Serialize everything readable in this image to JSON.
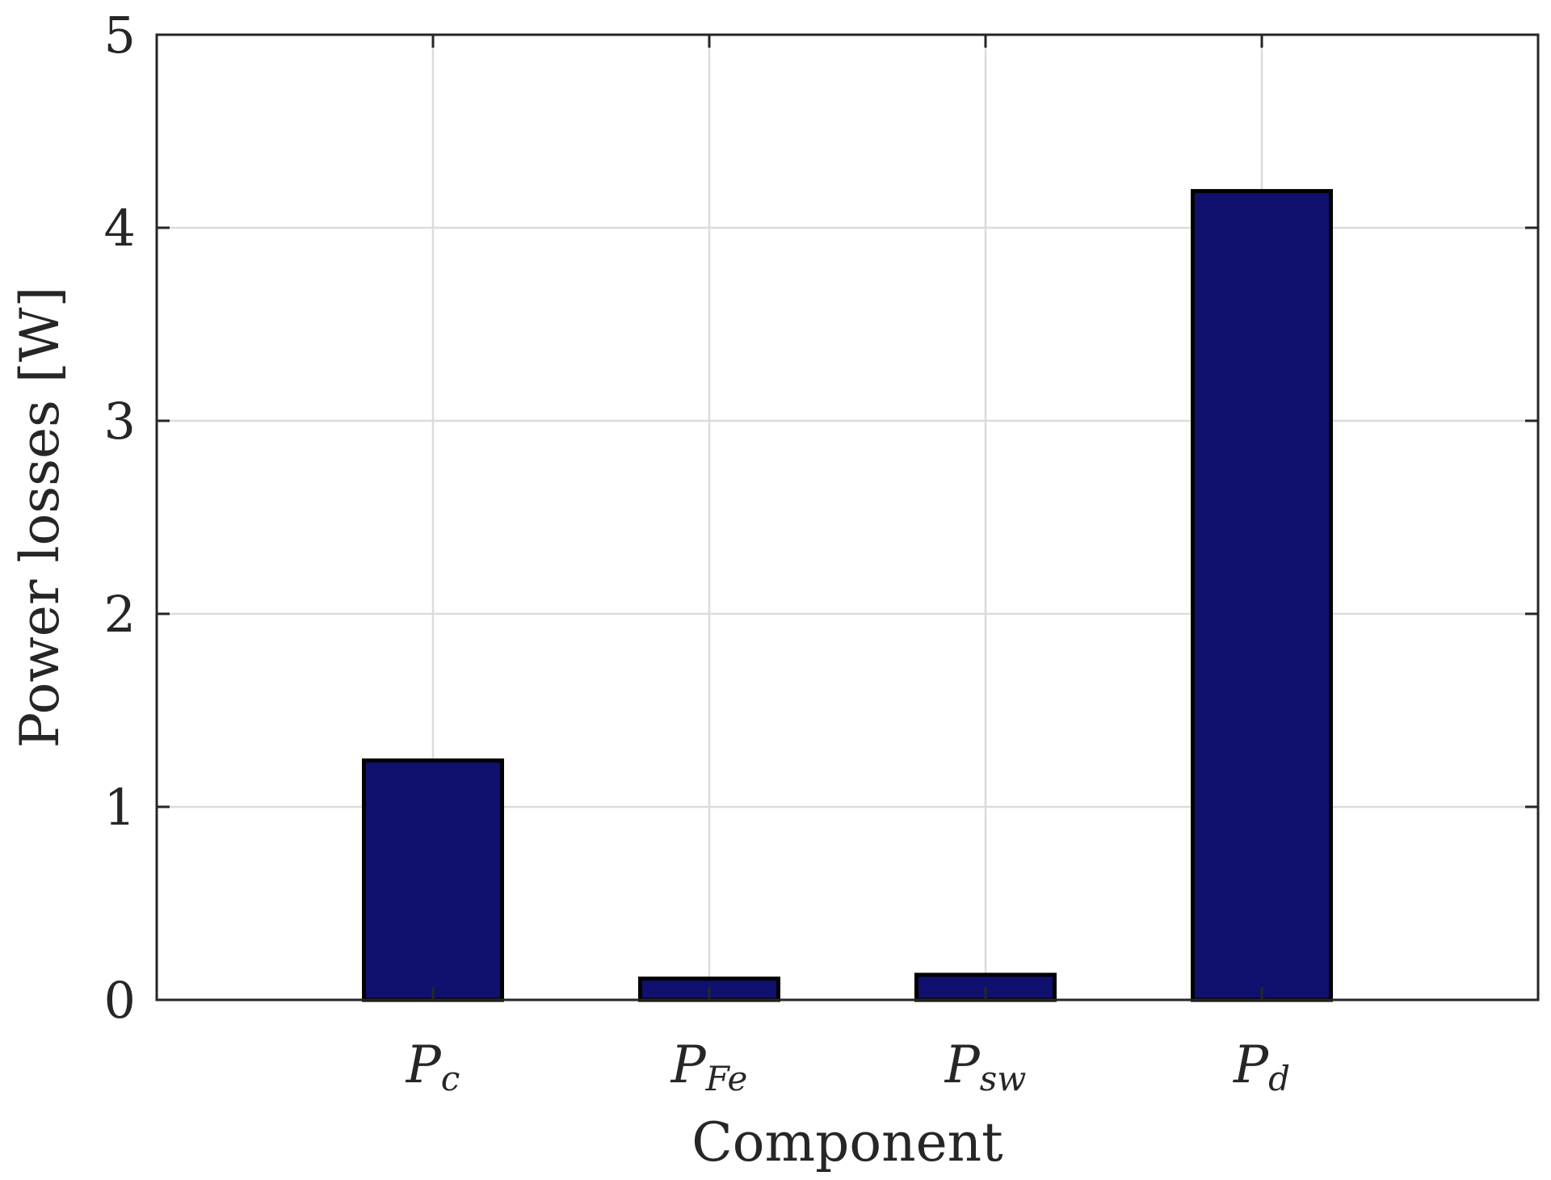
{
  "chart_data": {
    "type": "bar",
    "categories": [
      {
        "main": "P",
        "sub": "c"
      },
      {
        "main": "P",
        "sub": "Fe"
      },
      {
        "main": "P",
        "sub": "sw"
      },
      {
        "main": "P",
        "sub": "d"
      }
    ],
    "values": [
      1.24,
      0.11,
      0.13,
      4.19
    ],
    "xlabel": "Component",
    "ylabel": "Power losses [W]",
    "ylim": [
      0,
      5
    ],
    "yticks": [
      "0",
      "1",
      "2",
      "3",
      "4",
      "5"
    ],
    "grid": true,
    "bar_color": "#10106e",
    "edge_color": "#000000",
    "axis_color": "#262626",
    "grid_color": "#dcdcdc"
  }
}
